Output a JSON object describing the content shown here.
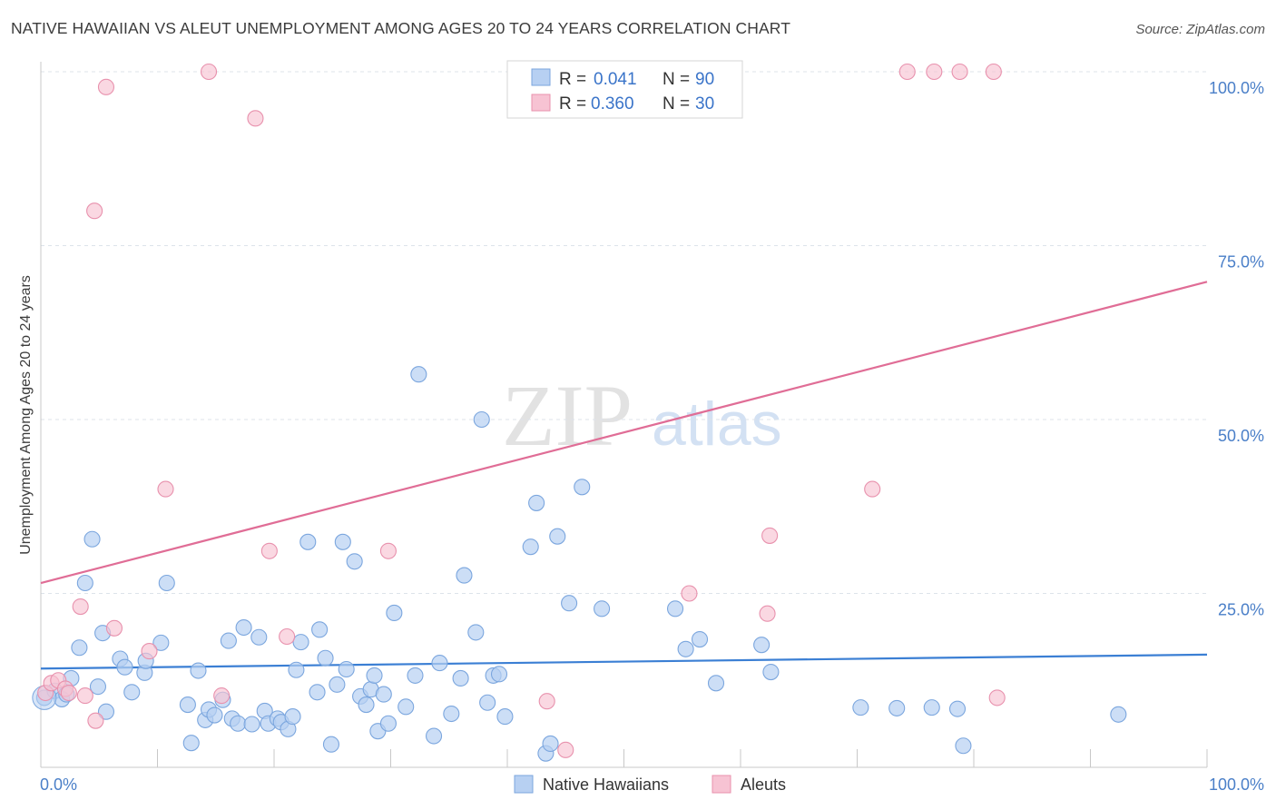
{
  "title": "NATIVE HAWAIIAN VS ALEUT UNEMPLOYMENT AMONG AGES 20 TO 24 YEARS CORRELATION CHART",
  "source": "Source: ZipAtlas.com",
  "watermark": {
    "zip": "ZIP",
    "atlas": "atlas"
  },
  "colors": {
    "blue_fill": "#b7d0f2",
    "blue_stroke": "#7ba6de",
    "blue_line": "#3b7fd4",
    "pink_fill": "#f7c3d3",
    "pink_stroke": "#e891ad",
    "pink_line": "#e06d96",
    "tick_text": "#4a7fc8",
    "grid": "#dde3ea"
  },
  "legend": {
    "rows": [
      {
        "r_label": "R =",
        "r_value": "0.041",
        "n_label": "N =",
        "n_value": "90",
        "series": "Native Hawaiians"
      },
      {
        "r_label": "R =",
        "r_value": "0.360",
        "n_label": "N =",
        "n_value": "30",
        "series": "Aleuts"
      }
    ]
  },
  "chart_data": {
    "type": "scatter",
    "xlabel": "",
    "ylabel": "Unemployment Among Ages 20 to 24 years",
    "xlim": [
      0,
      100
    ],
    "ylim": [
      0,
      100
    ],
    "x_tick_labels": [
      "0.0%",
      "100.0%"
    ],
    "y_tick_labels": [
      "100.0%",
      "75.0%",
      "50.0%",
      "25.0%"
    ],
    "y_tick_values": [
      100,
      75,
      50,
      25
    ],
    "series": [
      {
        "name": "Native Hawaiians",
        "color": "#b7d0f2",
        "trend": {
          "x": [
            0,
            100
          ],
          "y": [
            14.2,
            16.2
          ]
        },
        "points": [
          [
            0.3,
            10.0
          ],
          [
            1.2,
            11.0
          ],
          [
            1.8,
            9.8
          ],
          [
            2.2,
            10.5
          ],
          [
            2.6,
            12.8
          ],
          [
            3.3,
            17.2
          ],
          [
            3.8,
            26.5
          ],
          [
            4.4,
            32.8
          ],
          [
            4.9,
            11.6
          ],
          [
            5.3,
            19.3
          ],
          [
            5.6,
            8.0
          ],
          [
            6.8,
            15.6
          ],
          [
            7.2,
            14.4
          ],
          [
            7.8,
            10.8
          ],
          [
            8.9,
            13.6
          ],
          [
            9.0,
            15.3
          ],
          [
            10.3,
            17.9
          ],
          [
            10.8,
            26.5
          ],
          [
            12.6,
            9.0
          ],
          [
            12.9,
            3.5
          ],
          [
            13.5,
            13.9
          ],
          [
            14.1,
            6.8
          ],
          [
            14.4,
            8.3
          ],
          [
            14.9,
            7.5
          ],
          [
            15.6,
            9.7
          ],
          [
            16.1,
            18.2
          ],
          [
            16.4,
            7.0
          ],
          [
            16.9,
            6.3
          ],
          [
            17.4,
            20.1
          ],
          [
            18.1,
            6.2
          ],
          [
            18.7,
            18.7
          ],
          [
            19.2,
            8.1
          ],
          [
            19.5,
            6.3
          ],
          [
            20.3,
            7.0
          ],
          [
            20.6,
            6.5
          ],
          [
            21.2,
            5.5
          ],
          [
            21.6,
            7.3
          ],
          [
            21.9,
            14.0
          ],
          [
            22.3,
            18.0
          ],
          [
            22.9,
            32.4
          ],
          [
            23.7,
            10.8
          ],
          [
            23.9,
            19.8
          ],
          [
            24.4,
            15.7
          ],
          [
            24.9,
            3.3
          ],
          [
            25.4,
            11.9
          ],
          [
            25.9,
            32.4
          ],
          [
            26.2,
            14.1
          ],
          [
            26.9,
            29.6
          ],
          [
            27.4,
            10.2
          ],
          [
            27.9,
            9.0
          ],
          [
            28.3,
            11.2
          ],
          [
            28.6,
            13.2
          ],
          [
            28.9,
            5.2
          ],
          [
            29.4,
            10.5
          ],
          [
            29.8,
            6.3
          ],
          [
            30.3,
            22.2
          ],
          [
            31.3,
            8.7
          ],
          [
            32.1,
            13.2
          ],
          [
            32.4,
            56.5
          ],
          [
            33.7,
            4.5
          ],
          [
            34.2,
            15.0
          ],
          [
            35.2,
            7.7
          ],
          [
            36.0,
            12.8
          ],
          [
            36.3,
            27.6
          ],
          [
            37.3,
            19.4
          ],
          [
            37.8,
            50.0
          ],
          [
            38.3,
            9.3
          ],
          [
            38.8,
            13.2
          ],
          [
            39.3,
            13.4
          ],
          [
            39.8,
            7.3
          ],
          [
            42.0,
            31.7
          ],
          [
            42.5,
            38.0
          ],
          [
            43.3,
            2.0
          ],
          [
            43.7,
            3.4
          ],
          [
            44.3,
            33.2
          ],
          [
            45.3,
            23.6
          ],
          [
            46.4,
            40.3
          ],
          [
            48.1,
            22.8
          ],
          [
            54.4,
            22.8
          ],
          [
            55.3,
            17.0
          ],
          [
            56.5,
            18.4
          ],
          [
            57.9,
            12.1
          ],
          [
            61.8,
            17.6
          ],
          [
            62.6,
            13.7
          ],
          [
            70.3,
            8.6
          ],
          [
            73.4,
            8.5
          ],
          [
            76.4,
            8.6
          ],
          [
            78.6,
            8.4
          ],
          [
            79.1,
            3.1
          ],
          [
            92.4,
            7.6
          ]
        ]
      },
      {
        "name": "Aleuts",
        "color": "#f7c3d3",
        "trend": {
          "x": [
            0,
            100
          ],
          "y": [
            26.5,
            69.8
          ]
        },
        "points": [
          [
            0.4,
            10.7
          ],
          [
            0.9,
            12.1
          ],
          [
            1.5,
            12.5
          ],
          [
            2.1,
            11.3
          ],
          [
            2.4,
            10.7
          ],
          [
            3.4,
            23.1
          ],
          [
            3.8,
            10.3
          ],
          [
            4.6,
            80.0
          ],
          [
            4.7,
            6.7
          ],
          [
            5.6,
            97.8
          ],
          [
            6.3,
            20.0
          ],
          [
            9.3,
            16.7
          ],
          [
            10.7,
            40.0
          ],
          [
            14.4,
            100.0
          ],
          [
            18.4,
            93.3
          ],
          [
            19.6,
            31.1
          ],
          [
            21.1,
            18.8
          ],
          [
            29.8,
            31.1
          ],
          [
            43.4,
            9.5
          ],
          [
            45.0,
            2.5
          ],
          [
            55.6,
            25.0
          ],
          [
            62.3,
            22.1
          ],
          [
            62.5,
            33.3
          ],
          [
            71.3,
            40.0
          ],
          [
            74.3,
            100.0
          ],
          [
            76.6,
            100.0
          ],
          [
            78.8,
            100.0
          ],
          [
            81.7,
            100.0
          ],
          [
            82.0,
            10.0
          ],
          [
            15.5,
            10.3
          ]
        ]
      }
    ]
  },
  "bottom_legend": [
    "Native Hawaiians",
    "Aleuts"
  ]
}
